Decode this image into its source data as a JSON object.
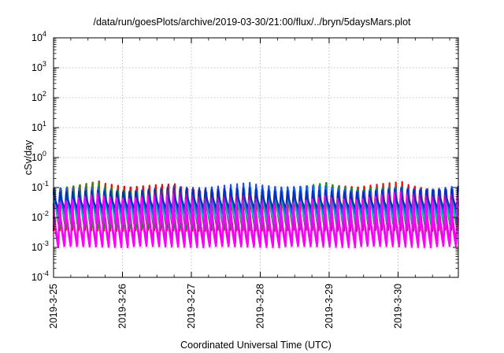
{
  "chart_data": {
    "type": "line",
    "title": "/data/run/goesPlots/archive/2019-03-30/21:00/flux/../bryn/5daysMars.plot",
    "xlabel": "Coordinated Universal Time (UTC)",
    "ylabel": "cSv/day",
    "yscale": "log",
    "ylim": [
      0.0001,
      10000
    ],
    "xlim": [
      "2019-3-25",
      "2019-3-30 21:00"
    ],
    "x_days_range": [
      0,
      5.875
    ],
    "y_ticks": [
      {
        "base": "10",
        "exp": "-4"
      },
      {
        "base": "10",
        "exp": "-3"
      },
      {
        "base": "10",
        "exp": "-2"
      },
      {
        "base": "10",
        "exp": "-1"
      },
      {
        "base": "10",
        "exp": "0"
      },
      {
        "base": "10",
        "exp": "1"
      },
      {
        "base": "10",
        "exp": "2"
      },
      {
        "base": "10",
        "exp": "3"
      },
      {
        "base": "10",
        "exp": "4"
      }
    ],
    "x_ticks": [
      "2019-3-25",
      "2019-3-26",
      "2019-3-27",
      "2019-3-28",
      "2019-3-29",
      "2019-3-30"
    ],
    "grid": true,
    "cycle_hours": 2.2,
    "series": [
      {
        "color": "#ff0000",
        "max": 0.125,
        "min": 0.0035
      },
      {
        "color": "#00a000",
        "max": 0.11,
        "min": 0.004
      },
      {
        "color": "#00c0c0",
        "max": 0.1,
        "min": 0.006
      },
      {
        "color": "#2050e8",
        "max": 0.12,
        "min": 0.012
      },
      {
        "color": "#0030c0",
        "max": 0.09,
        "min": 0.02
      },
      {
        "color": "#c000c0",
        "max": 0.06,
        "min": 0.0012
      },
      {
        "color": "#ff00ff",
        "max": 0.05,
        "min": 0.001
      }
    ]
  }
}
